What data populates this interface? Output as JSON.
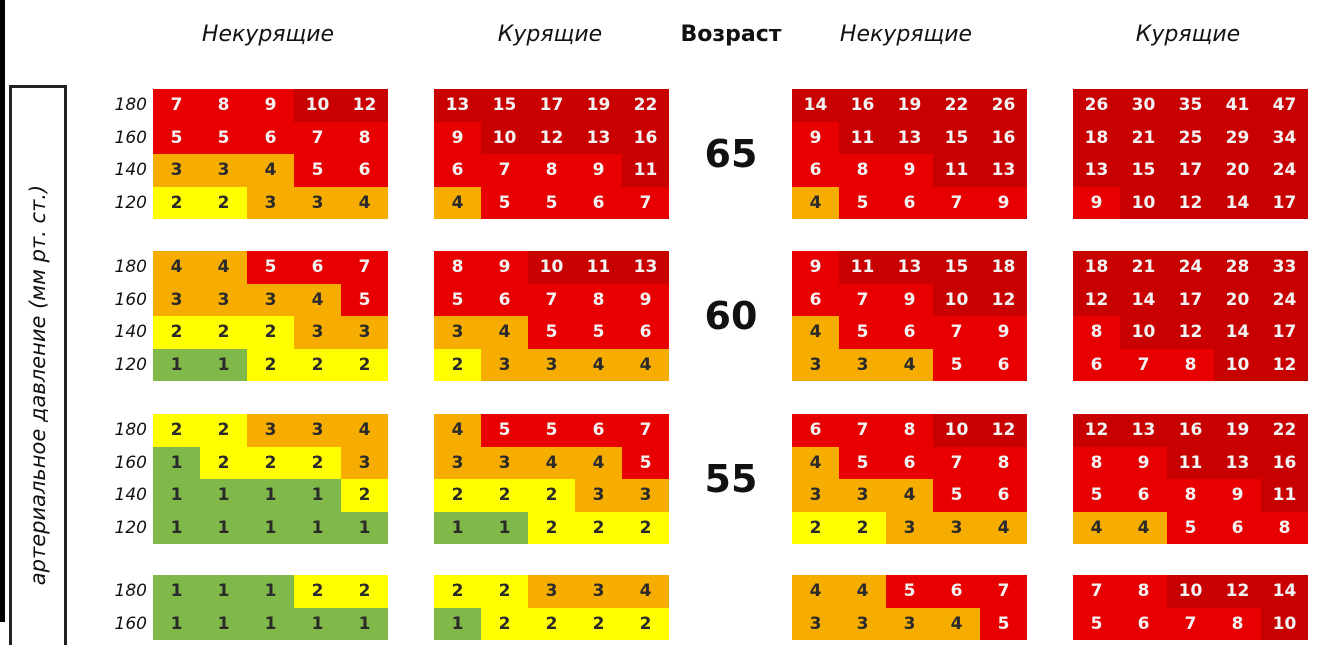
{
  "headers": {
    "nonsmokers": "Некурящие",
    "smokers": "Курящие",
    "age": "Возраст"
  },
  "axis_label": "артериальное давление (мм рт. ст.)",
  "bp_levels": [
    "180",
    "160",
    "140",
    "120"
  ],
  "colors": {
    "green": "#80b94a",
    "yellow": "#ffff00",
    "orange": "#f6ad00",
    "red": "#e80000",
    "darkred": "#c80000"
  },
  "chart_data": {
    "type": "heatmap",
    "rows_label": "артериальное давление (мм рт. ст.)",
    "row_values": [
      180,
      160,
      140,
      120
    ],
    "groups": [
      {
        "age": "65",
        "panels": [
          [
            [
              7,
              8,
              9,
              10,
              12
            ],
            [
              5,
              5,
              6,
              7,
              8
            ],
            [
              3,
              3,
              4,
              5,
              6
            ],
            [
              2,
              2,
              3,
              3,
              4
            ]
          ],
          [
            [
              13,
              15,
              17,
              19,
              22
            ],
            [
              9,
              10,
              12,
              13,
              16
            ],
            [
              6,
              7,
              8,
              9,
              11
            ],
            [
              4,
              5,
              5,
              6,
              7
            ]
          ],
          [
            [
              14,
              16,
              19,
              22,
              26
            ],
            [
              9,
              11,
              13,
              15,
              16
            ],
            [
              6,
              8,
              9,
              11,
              13
            ],
            [
              4,
              5,
              6,
              7,
              9
            ]
          ],
          [
            [
              26,
              30,
              35,
              41,
              47
            ],
            [
              18,
              21,
              25,
              29,
              34
            ],
            [
              13,
              15,
              17,
              20,
              24
            ],
            [
              9,
              10,
              12,
              14,
              17
            ]
          ]
        ]
      },
      {
        "age": "60",
        "panels": [
          [
            [
              4,
              4,
              5,
              6,
              7
            ],
            [
              3,
              3,
              3,
              4,
              5
            ],
            [
              2,
              2,
              2,
              3,
              3
            ],
            [
              1,
              1,
              2,
              2,
              2
            ]
          ],
          [
            [
              8,
              9,
              10,
              11,
              13
            ],
            [
              5,
              6,
              7,
              8,
              9
            ],
            [
              3,
              4,
              5,
              5,
              6
            ],
            [
              2,
              3,
              3,
              4,
              4
            ]
          ],
          [
            [
              9,
              11,
              13,
              15,
              18
            ],
            [
              6,
              7,
              9,
              10,
              12
            ],
            [
              4,
              5,
              6,
              7,
              9
            ],
            [
              3,
              3,
              4,
              5,
              6
            ]
          ],
          [
            [
              18,
              21,
              24,
              28,
              33
            ],
            [
              12,
              14,
              17,
              20,
              24
            ],
            [
              8,
              10,
              12,
              14,
              17
            ],
            [
              6,
              7,
              8,
              10,
              12
            ]
          ]
        ]
      },
      {
        "age": "55",
        "panels": [
          [
            [
              2,
              2,
              3,
              3,
              4
            ],
            [
              1,
              2,
              2,
              2,
              3
            ],
            [
              1,
              1,
              1,
              1,
              2
            ],
            [
              1,
              1,
              1,
              1,
              1
            ]
          ],
          [
            [
              4,
              5,
              5,
              6,
              7
            ],
            [
              3,
              3,
              4,
              4,
              5
            ],
            [
              2,
              2,
              2,
              3,
              3
            ],
            [
              1,
              1,
              2,
              2,
              2
            ]
          ],
          [
            [
              6,
              7,
              8,
              10,
              12
            ],
            [
              4,
              5,
              6,
              7,
              8
            ],
            [
              3,
              3,
              4,
              5,
              6
            ],
            [
              2,
              2,
              3,
              3,
              4
            ]
          ],
          [
            [
              12,
              13,
              16,
              19,
              22
            ],
            [
              8,
              9,
              11,
              13,
              16
            ],
            [
              5,
              6,
              8,
              9,
              11
            ],
            [
              4,
              4,
              5,
              6,
              8
            ]
          ]
        ]
      },
      {
        "age": "",
        "panels": [
          [
            [
              1,
              1,
              1,
              2,
              2
            ],
            [
              1,
              1,
              1,
              1,
              1
            ]
          ],
          [
            [
              2,
              2,
              3,
              3,
              4
            ],
            [
              1,
              2,
              2,
              2,
              2
            ]
          ],
          [
            [
              4,
              4,
              5,
              6,
              7
            ],
            [
              3,
              3,
              3,
              4,
              5
            ]
          ],
          [
            [
              7,
              8,
              10,
              12,
              14
            ],
            [
              5,
              6,
              7,
              8,
              10
            ]
          ]
        ]
      }
    ]
  }
}
